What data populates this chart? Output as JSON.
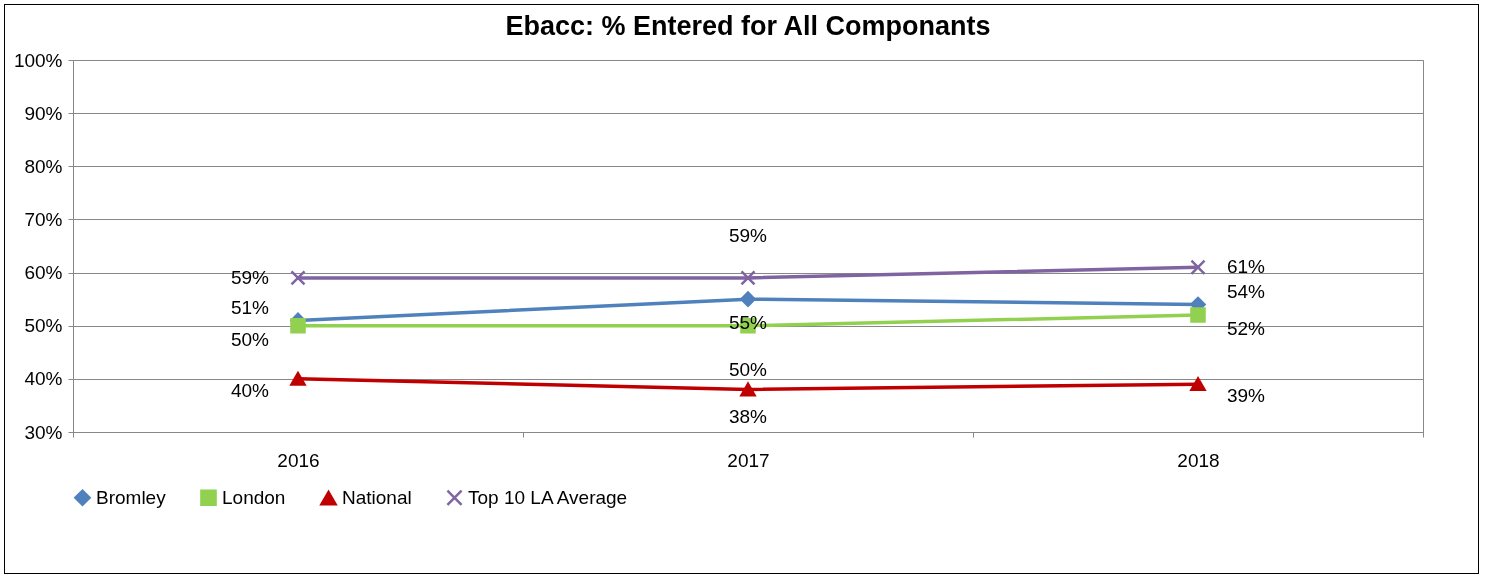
{
  "chart_data": {
    "type": "line",
    "title": "Ebacc: % Entered for All Componants",
    "categories": [
      "2016",
      "2017",
      "2018"
    ],
    "series": [
      {
        "name": "Bromley",
        "color": "#4f81bd",
        "marker": "diamond",
        "values": [
          51,
          55,
          54
        ],
        "value_labels": [
          "51%",
          "55%",
          "54%"
        ]
      },
      {
        "name": "London",
        "color": "#92d050",
        "marker": "square",
        "values": [
          50,
          50,
          52
        ],
        "value_labels": [
          "50%",
          "50%",
          "52%"
        ]
      },
      {
        "name": "National",
        "color": "#c00000",
        "marker": "triangle",
        "values": [
          40,
          38,
          39
        ],
        "value_labels": [
          "40%",
          "38%",
          "39%"
        ]
      },
      {
        "name": "Top 10 LA Average",
        "color": "#8064a2",
        "marker": "cross",
        "values": [
          59,
          59,
          61
        ],
        "value_labels": [
          "59%",
          "59%",
          "61%"
        ]
      }
    ],
    "ylim": [
      30,
      100
    ],
    "yticks": [
      {
        "value": 30,
        "label": "30%"
      },
      {
        "value": 40,
        "label": "40%"
      },
      {
        "value": 50,
        "label": "50%"
      },
      {
        "value": 60,
        "label": "60%"
      },
      {
        "value": 70,
        "label": "70%"
      },
      {
        "value": 80,
        "label": "80%"
      },
      {
        "value": 90,
        "label": "90%"
      },
      {
        "value": 100,
        "label": "100%"
      }
    ],
    "grid": "y",
    "legend": "bottom",
    "line_style": "solid"
  }
}
